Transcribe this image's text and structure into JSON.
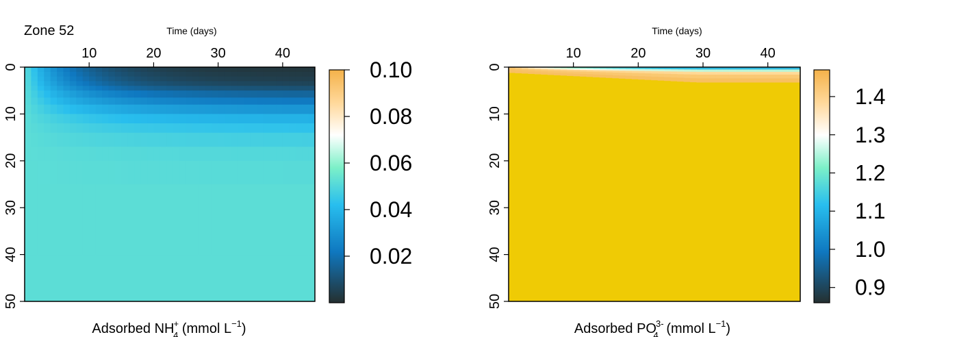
{
  "figure": {
    "zone_label": "Zone 52"
  },
  "chart_data": [
    {
      "type": "heatmap",
      "title": "",
      "top_label": "Time (days)",
      "xlabel_parts": {
        "prefix": "Adsorbed NH",
        "sub": "4",
        "sup": "+",
        "units_open": " (mmol L",
        "units_sup": "−1",
        "units_close": ")"
      },
      "ylabel": "",
      "x_axis_position": "top",
      "xlim": [
        0,
        45
      ],
      "ylim": [
        50,
        0
      ],
      "x_ticks": [
        10,
        20,
        30,
        40
      ],
      "y_ticks": [
        0,
        10,
        20,
        30,
        40,
        50
      ],
      "colorbar": {
        "range": [
          0,
          0.1
        ],
        "ticks": [
          0.02,
          0.04,
          0.06,
          0.08,
          0.1
        ],
        "tick_labels": [
          "0.02",
          "0.04",
          "0.06",
          "0.08",
          "0.10"
        ],
        "colors": [
          "#253030",
          "#0F78C0",
          "#28BEEE",
          "#7CF0C8",
          "#FFFFFF",
          "#FFD89A",
          "#F4B24A"
        ]
      },
      "field": {
        "depth_layers_top": [
          0,
          1,
          2,
          3,
          4,
          5,
          6.5,
          8,
          10,
          12,
          14,
          17,
          20,
          25,
          30,
          40
        ],
        "layer_values_end": [
          0.002,
          0.003,
          0.004,
          0.006,
          0.01,
          0.016,
          0.022,
          0.03,
          0.038,
          0.043,
          0.047,
          0.05,
          0.051,
          0.052,
          0.052,
          0.052
        ],
        "background_value": 0.052
      }
    },
    {
      "type": "heatmap",
      "title": "",
      "top_label": "Time (days)",
      "xlabel_parts": {
        "prefix": "Adsorbed PO",
        "sub": "4",
        "sup": "3-",
        "units_open": " (mmol L",
        "units_sup": "−1",
        "units_close": ")"
      },
      "ylabel": "",
      "x_axis_position": "top",
      "xlim": [
        0,
        45
      ],
      "ylim": [
        50,
        0
      ],
      "x_ticks": [
        10,
        20,
        30,
        40
      ],
      "y_ticks": [
        0,
        10,
        20,
        30,
        40,
        50
      ],
      "colorbar": {
        "range": [
          0.86,
          1.47
        ],
        "ticks": [
          0.9,
          1.0,
          1.1,
          1.2,
          1.3,
          1.4
        ],
        "tick_labels": [
          "0.9",
          "1.0",
          "1.1",
          "1.2",
          "1.3",
          "1.4"
        ],
        "colors": [
          "#253030",
          "#0F78C0",
          "#28BEEE",
          "#7CF0C8",
          "#FFFFFF",
          "#FFD89A",
          "#F4B24A"
        ]
      },
      "field": {
        "surface_values_end": [
          1.1,
          1.25,
          1.38,
          1.42,
          1.44
        ],
        "background_color": "#EFCB05"
      }
    }
  ]
}
